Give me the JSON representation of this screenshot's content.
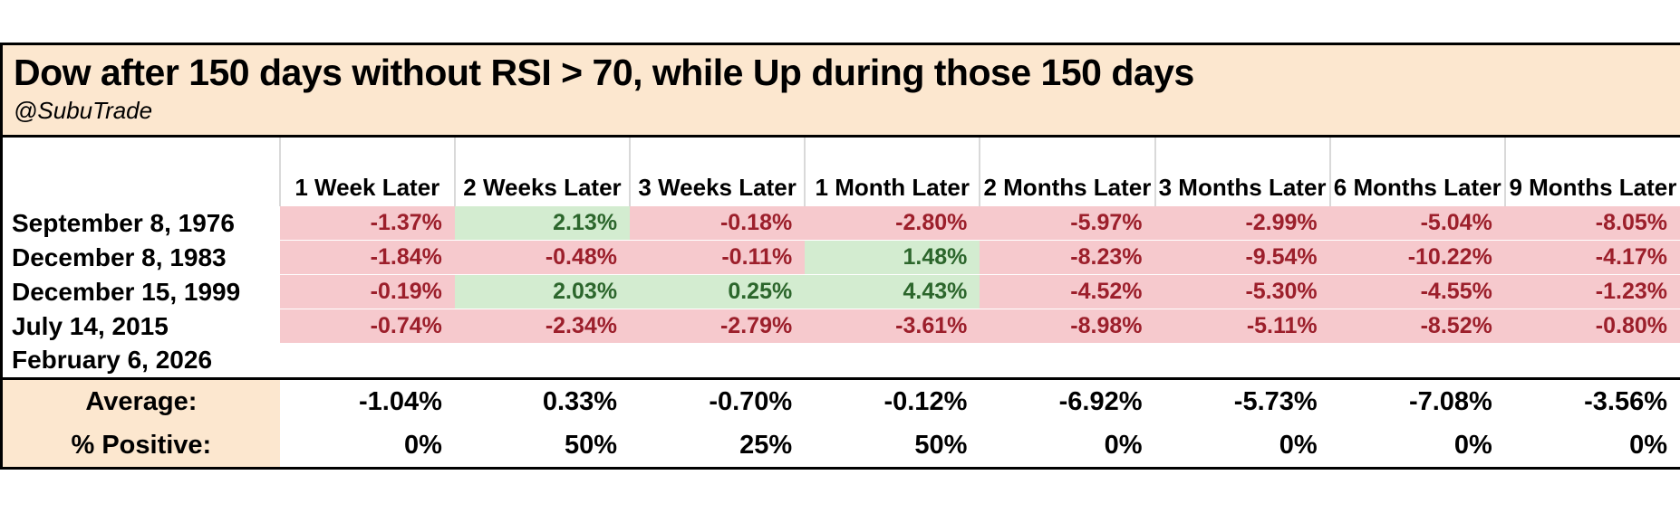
{
  "chart_data": {
    "type": "table",
    "title": "Dow after 150 days without RSI > 70, while Up during those 150 days",
    "subtitle": "@SubuTrade",
    "columns": [
      "1 Week Later",
      "2 Weeks Later",
      "3 Weeks Later",
      "1 Month Later",
      "2 Months Later",
      "3 Months Later",
      "6 Months Later",
      "9 Months Later"
    ],
    "rows": [
      {
        "date": "September 8, 1976",
        "values": [
          "-1.37%",
          "2.13%",
          "-0.18%",
          "-2.80%",
          "-5.97%",
          "-2.99%",
          "-5.04%",
          "-8.05%"
        ]
      },
      {
        "date": "December 8, 1983",
        "values": [
          "-1.84%",
          "-0.48%",
          "-0.11%",
          "1.48%",
          "-8.23%",
          "-9.54%",
          "-10.22%",
          "-4.17%"
        ]
      },
      {
        "date": "December 15, 1999",
        "values": [
          "-0.19%",
          "2.03%",
          "0.25%",
          "4.43%",
          "-4.52%",
          "-5.30%",
          "-4.55%",
          "-1.23%"
        ]
      },
      {
        "date": "July 14, 2015",
        "values": [
          "-0.74%",
          "-2.34%",
          "-2.79%",
          "-3.61%",
          "-8.98%",
          "-5.11%",
          "-8.52%",
          "-0.80%"
        ]
      },
      {
        "date": "February 6, 2026",
        "values": [
          "",
          "",
          "",
          "",
          "",
          "",
          "",
          ""
        ]
      }
    ],
    "summary_rows": [
      {
        "label": "Average:",
        "values": [
          "-1.04%",
          "0.33%",
          "-0.70%",
          "-0.12%",
          "-6.92%",
          "-5.73%",
          "-7.08%",
          "-3.56%"
        ]
      },
      {
        "label": "% Positive:",
        "values": [
          "0%",
          "50%",
          "25%",
          "50%",
          "0%",
          "0%",
          "0%",
          "0%"
        ]
      }
    ],
    "layout_hints": {
      "legend": "none",
      "grid": "off"
    },
    "colors": {
      "title_bg": "#fce7cf",
      "negative_bg": "#f6c9cd",
      "negative_text": "#9c1f2b",
      "positive_bg": "#d3ecd0",
      "positive_text": "#2c662c",
      "border": "#000000"
    }
  }
}
